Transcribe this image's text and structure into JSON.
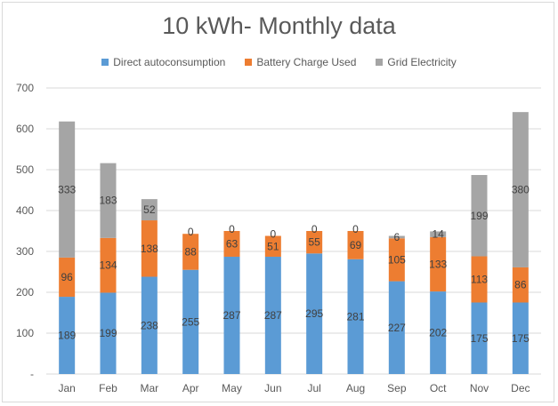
{
  "chart_data": {
    "type": "bar",
    "stacked": true,
    "title": "10 kWh- Monthly data",
    "categories": [
      "Jan",
      "Feb",
      "Mar",
      "Apr",
      "May",
      "Jun",
      "Jul",
      "Aug",
      "Sep",
      "Oct",
      "Nov",
      "Dec"
    ],
    "series": [
      {
        "name": "Direct autoconsumption",
        "color": "#5b9bd5",
        "values": [
          189,
          199,
          238,
          255,
          287,
          287,
          295,
          281,
          227,
          202,
          175,
          175
        ]
      },
      {
        "name": "Battery Charge Used",
        "color": "#ed7d31",
        "values": [
          96,
          134,
          138,
          88,
          63,
          51,
          55,
          69,
          105,
          133,
          113,
          86
        ]
      },
      {
        "name": "Grid Electricity",
        "color": "#a5a5a5",
        "values": [
          333,
          183,
          52,
          0,
          0,
          0,
          0,
          0,
          6,
          14,
          199,
          380
        ]
      }
    ],
    "ylim": [
      0,
      700
    ],
    "yticks": [
      "-",
      "100",
      "200",
      "300",
      "400",
      "500",
      "600",
      "700"
    ],
    "grid": true,
    "legend_position": "top"
  }
}
